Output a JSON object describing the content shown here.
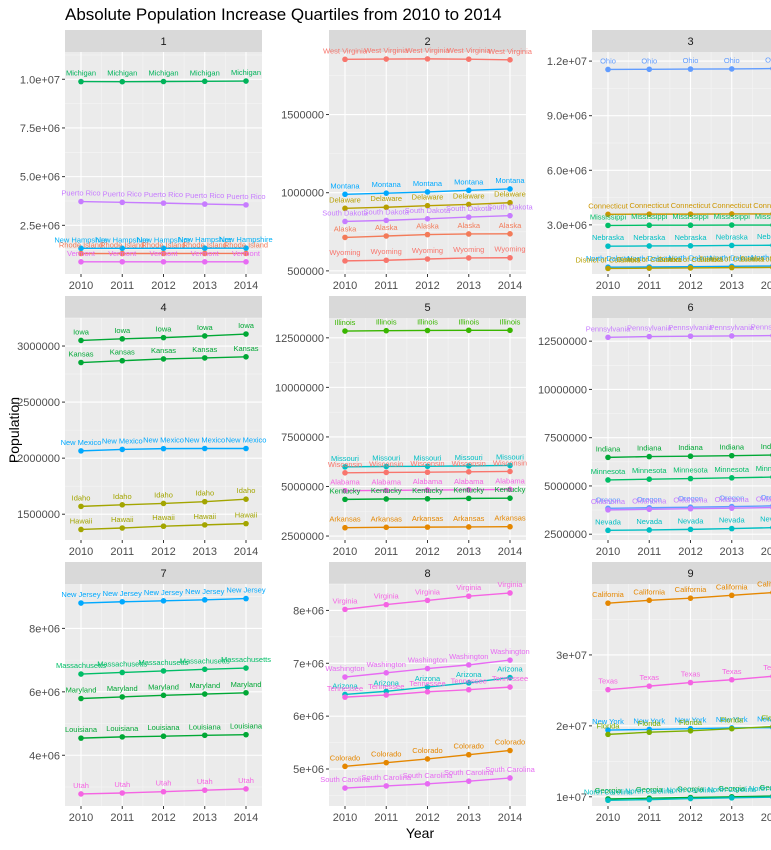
{
  "title": "Absolute Population Increase Quartiles from 2010 to 2014",
  "xlabel": "Year",
  "ylabel": "Population",
  "chart_data": {
    "type": "line",
    "title": "Absolute Population Increase Quartiles from 2010 to 2014",
    "xlabel": "Year",
    "ylabel": "Population",
    "grid": true,
    "legend": "none",
    "x": [
      "2010",
      "2011",
      "2012",
      "2013",
      "2014"
    ],
    "panels": [
      {
        "label": "1",
        "ylim": [
          0,
          11400000
        ],
        "yticks": [
          2500000,
          5000000,
          7500000,
          10000000
        ],
        "yticklabels": [
          "2.5e+06",
          "5.0e+06",
          "7.5e+06",
          "1.0e+07"
        ],
        "series": [
          {
            "name": "Michigan",
            "color": "#00b35a",
            "values": [
              9880000,
              9875000,
              9885000,
              9895000,
              9910000
            ]
          },
          {
            "name": "Puerto Rico",
            "color": "#c77cff",
            "values": [
              3720000,
              3680000,
              3640000,
              3590000,
              3550000
            ]
          },
          {
            "name": "New Hampshire",
            "color": "#00b0f6",
            "values": [
              1317000,
              1320000,
              1322000,
              1324000,
              1327000
            ]
          },
          {
            "name": "Rhode Island",
            "color": "#f37b59",
            "values": [
              1053000,
              1052000,
              1053000,
              1054000,
              1055000
            ]
          },
          {
            "name": "Vermont",
            "color": "#e76bf3",
            "values": [
              626000,
              627000,
              626000,
              626000,
              626000
            ]
          }
        ]
      },
      {
        "label": "2",
        "ylim": [
          480000,
          1900000
        ],
        "yticks": [
          500000,
          1000000,
          1500000
        ],
        "yticklabels": [
          "500000",
          "1000000",
          "1500000"
        ],
        "series": [
          {
            "name": "West Virginia",
            "color": "#f8766d",
            "values": [
              1853000,
              1855000,
              1856000,
              1854000,
              1850000
            ]
          },
          {
            "name": "Montana",
            "color": "#00a9ff",
            "values": [
              990000,
              997000,
              1005000,
              1015000,
              1024000
            ]
          },
          {
            "name": "Delaware",
            "color": "#b79f00",
            "values": [
              900000,
              907000,
              917000,
              925000,
              936000
            ]
          },
          {
            "name": "South Dakota",
            "color": "#c77cff",
            "values": [
              816000,
              823000,
              833000,
              844000,
              853000
            ]
          },
          {
            "name": "Alaska",
            "color": "#f37b59",
            "values": [
              714000,
              723000,
              732000,
              736000,
              737000
            ]
          },
          {
            "name": "Wyoming",
            "color": "#f8766d",
            "values": [
              564000,
              568000,
              576000,
              583000,
              584000
            ]
          }
        ]
      },
      {
        "label": "3",
        "ylim": [
          300000,
          12500000
        ],
        "yticks": [
          3000000,
          6000000,
          9000000,
          12000000
        ],
        "yticklabels": [
          "3.0e+06",
          "6.0e+06",
          "9.0e+06",
          "1.2e+07"
        ],
        "series": [
          {
            "name": "Ohio",
            "color": "#619cff",
            "values": [
              11540000,
              11550000,
              11560000,
              11570000,
              11590000
            ]
          },
          {
            "name": "Connecticut",
            "color": "#cd9600",
            "values": [
              3580000,
              3590000,
              3590000,
              3600000,
              3600000
            ]
          },
          {
            "name": "Mississippi",
            "color": "#00be67",
            "values": [
              2970000,
              2980000,
              2980000,
              2990000,
              2990000
            ]
          },
          {
            "name": "Nebraska",
            "color": "#00bfc4",
            "values": [
              1830000,
              1840000,
              1850000,
              1870000,
              1880000
            ]
          },
          {
            "name": "North Dakota",
            "color": "#00a9ff",
            "values": [
              674000,
              685000,
              701000,
              723000,
              739000
            ]
          },
          {
            "name": "District of Columbia",
            "color": "#b79f00",
            "values": [
              605000,
              620000,
              635000,
              650000,
              660000
            ]
          }
        ]
      },
      {
        "label": "4",
        "ylim": [
          1270000,
          3250000
        ],
        "yticks": [
          1500000,
          2000000,
          2500000,
          3000000
        ],
        "yticklabels": [
          "1500000",
          "2000000",
          "2500000",
          "3000000"
        ],
        "series": [
          {
            "name": "Iowa",
            "color": "#00a835",
            "values": [
              3050000,
              3064000,
              3075000,
              3090000,
              3107000
            ]
          },
          {
            "name": "Kansas",
            "color": "#00a835",
            "values": [
              2853000,
              2869000,
              2885000,
              2894000,
              2904000
            ]
          },
          {
            "name": "New Mexico",
            "color": "#00a9ff",
            "values": [
              2065000,
              2078000,
              2085000,
              2086000,
              2086000
            ]
          },
          {
            "name": "Idaho",
            "color": "#a3a500",
            "values": [
              1570000,
              1584000,
              1596000,
              1612000,
              1634000
            ]
          },
          {
            "name": "Hawaii",
            "color": "#a3a500",
            "values": [
              1364000,
              1377000,
              1393000,
              1405000,
              1416000
            ]
          }
        ]
      },
      {
        "label": "5",
        "ylim": [
          2300000,
          13500000
        ],
        "yticks": [
          2500000,
          5000000,
          7500000,
          10000000,
          12500000
        ],
        "yticklabels": [
          "2500000",
          "5000000",
          "7500000",
          "10000000",
          "12500000"
        ],
        "series": [
          {
            "name": "Illinois",
            "color": "#39b600",
            "values": [
              12840000,
              12860000,
              12870000,
              12880000,
              12880000
            ]
          },
          {
            "name": "Missouri",
            "color": "#00bfc4",
            "values": [
              5990000,
              6010000,
              6020000,
              6040000,
              6060000
            ]
          },
          {
            "name": "Wisconsin",
            "color": "#f8766d",
            "values": [
              5690000,
              5710000,
              5720000,
              5740000,
              5760000
            ]
          },
          {
            "name": "Alabama",
            "color": "#f564e3",
            "values": [
              4790000,
              4800000,
              4820000,
              4830000,
              4850000
            ]
          },
          {
            "name": "Kentucky",
            "color": "#00a835",
            "values": [
              4350000,
              4370000,
              4380000,
              4400000,
              4410000
            ]
          },
          {
            "name": "Arkansas",
            "color": "#e58700",
            "values": [
              2920000,
              2940000,
              2950000,
              2960000,
              2970000
            ]
          }
        ]
      },
      {
        "label": "6",
        "ylim": [
          2200000,
          13700000
        ],
        "yticks": [
          2500000,
          5000000,
          7500000,
          10000000,
          12500000
        ],
        "yticklabels": [
          "2500000",
          "5000000",
          "7500000",
          "10000000",
          "12500000"
        ],
        "series": [
          {
            "name": "Pennsylvania",
            "color": "#c77cff",
            "values": [
              12700000,
              12740000,
              12760000,
              12770000,
              12790000
            ]
          },
          {
            "name": "Indiana",
            "color": "#00a835",
            "values": [
              6480000,
              6520000,
              6540000,
              6570000,
              6600000
            ]
          },
          {
            "name": "Minnesota",
            "color": "#00be67",
            "values": [
              5310000,
              5350000,
              5380000,
              5420000,
              5460000
            ]
          },
          {
            "name": "Oregon",
            "color": "#619cff",
            "values": [
              3840000,
              3870000,
              3900000,
              3930000,
              3970000
            ]
          },
          {
            "name": "Oklahoma",
            "color": "#c77cff",
            "values": [
              3760000,
              3790000,
              3820000,
              3850000,
              3880000
            ]
          },
          {
            "name": "Nevada",
            "color": "#00bfc4",
            "values": [
              2700000,
              2720000,
              2750000,
              2790000,
              2840000
            ]
          }
        ]
      },
      {
        "label": "7",
        "ylim": [
          2400000,
          9400000
        ],
        "yticks": [
          4000000,
          6000000,
          8000000
        ],
        "yticklabels": [
          "4e+06",
          "6e+06",
          "8e+06"
        ],
        "series": [
          {
            "name": "New Jersey",
            "color": "#00a9ff",
            "values": [
              8800000,
              8840000,
              8870000,
              8900000,
              8940000
            ]
          },
          {
            "name": "Massachusetts",
            "color": "#00be67",
            "values": [
              6560000,
              6610000,
              6660000,
              6710000,
              6750000
            ]
          },
          {
            "name": "Maryland",
            "color": "#00a835",
            "values": [
              5790000,
              5840000,
              5890000,
              5930000,
              5970000
            ]
          },
          {
            "name": "Louisiana",
            "color": "#00a835",
            "values": [
              4540000,
              4580000,
              4600000,
              4630000,
              4650000
            ]
          },
          {
            "name": "Utah",
            "color": "#f564e3",
            "values": [
              2780000,
              2810000,
              2850000,
              2900000,
              2940000
            ]
          }
        ]
      },
      {
        "label": "8",
        "ylim": [
          4300000,
          8500000
        ],
        "yticks": [
          5000000,
          6000000,
          7000000,
          8000000
        ],
        "yticklabels": [
          "5e+06",
          "6e+06",
          "7e+06",
          "8e+06"
        ],
        "series": [
          {
            "name": "Virginia",
            "color": "#f564e3",
            "values": [
              8020000,
              8110000,
              8190000,
              8270000,
              8330000
            ]
          },
          {
            "name": "Washington",
            "color": "#e76bf3",
            "values": [
              6740000,
              6820000,
              6900000,
              6970000,
              7060000
            ]
          },
          {
            "name": "Arizona",
            "color": "#00bfc4",
            "values": [
              6410000,
              6470000,
              6550000,
              6630000,
              6730000
            ]
          },
          {
            "name": "Tennessee",
            "color": "#f564e3",
            "values": [
              6360000,
              6400000,
              6460000,
              6500000,
              6550000
            ]
          },
          {
            "name": "Colorado",
            "color": "#e58700",
            "values": [
              5050000,
              5120000,
              5190000,
              5270000,
              5350000
            ]
          },
          {
            "name": "South Carolina",
            "color": "#e76bf3",
            "values": [
              4640000,
              4680000,
              4720000,
              4770000,
              4830000
            ]
          }
        ]
      },
      {
        "label": "9",
        "ylim": [
          8700000,
          40000000
        ],
        "yticks": [
          10000000,
          20000000,
          30000000
        ],
        "yticklabels": [
          "1e+07",
          "2e+07",
          "3e+07"
        ],
        "series": [
          {
            "name": "California",
            "color": "#e58700",
            "values": [
              37300000,
              37700000,
              38000000,
              38400000,
              38800000
            ]
          },
          {
            "name": "Texas",
            "color": "#f564e3",
            "values": [
              25100000,
              25600000,
              26100000,
              26500000,
              27000000
            ]
          },
          {
            "name": "New York",
            "color": "#00a9ff",
            "values": [
              19400000,
              19500000,
              19600000,
              19700000,
              19750000
            ]
          },
          {
            "name": "Florida",
            "color": "#7cae00",
            "values": [
              18800000,
              19100000,
              19300000,
              19600000,
              19900000
            ]
          },
          {
            "name": "Georgia",
            "color": "#00a835",
            "values": [
              9700000,
              9800000,
              9900000,
              10000000,
              10100000
            ]
          },
          {
            "name": "North Carolina",
            "color": "#00bfc4",
            "values": [
              9500000,
              9600000,
              9750000,
              9850000,
              9950000
            ]
          }
        ]
      }
    ]
  }
}
